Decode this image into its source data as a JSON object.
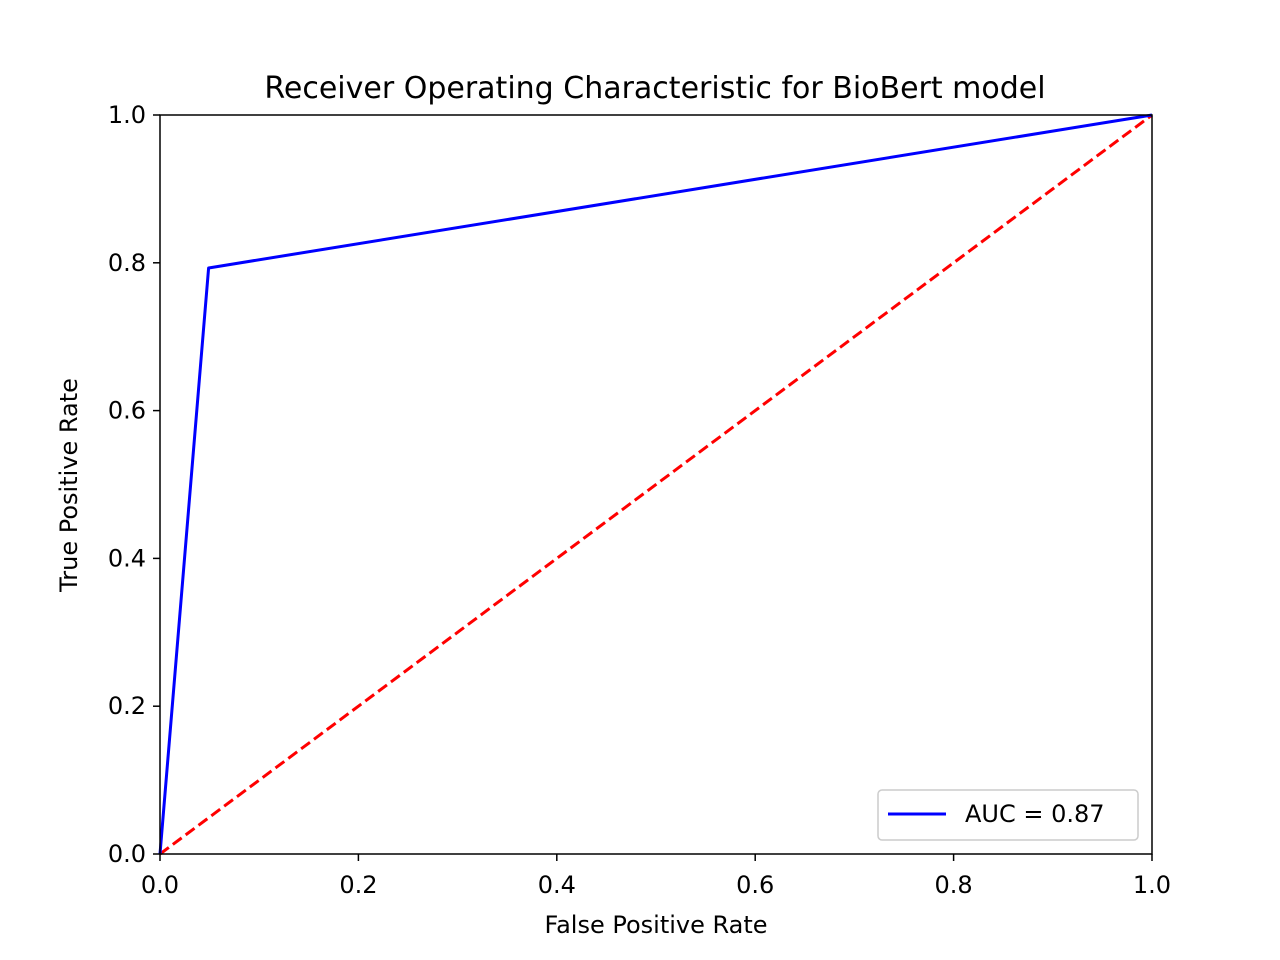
{
  "chart_data": {
    "type": "line",
    "title": "Receiver Operating Characteristic for BioBert model",
    "xlabel": "False Positive Rate",
    "ylabel": "True Positive Rate",
    "xlim": [
      0,
      1
    ],
    "ylim": [
      0,
      1
    ],
    "xticks": [
      "0.0",
      "0.2",
      "0.4",
      "0.6",
      "0.8",
      "1.0"
    ],
    "yticks": [
      "0.0",
      "0.2",
      "0.4",
      "0.6",
      "0.8",
      "1.0"
    ],
    "grid": false,
    "legend_position": "lower-right",
    "series": [
      {
        "name": "AUC = 0.87",
        "color": "#0000ff",
        "style": "solid",
        "x": [
          0.0,
          0.049,
          1.0
        ],
        "y": [
          0.0,
          0.793,
          1.0
        ]
      },
      {
        "color": "#ff0000",
        "style": "dashed",
        "x": [
          0.0,
          1.0
        ],
        "y": [
          0.0,
          1.0
        ]
      }
    ]
  }
}
